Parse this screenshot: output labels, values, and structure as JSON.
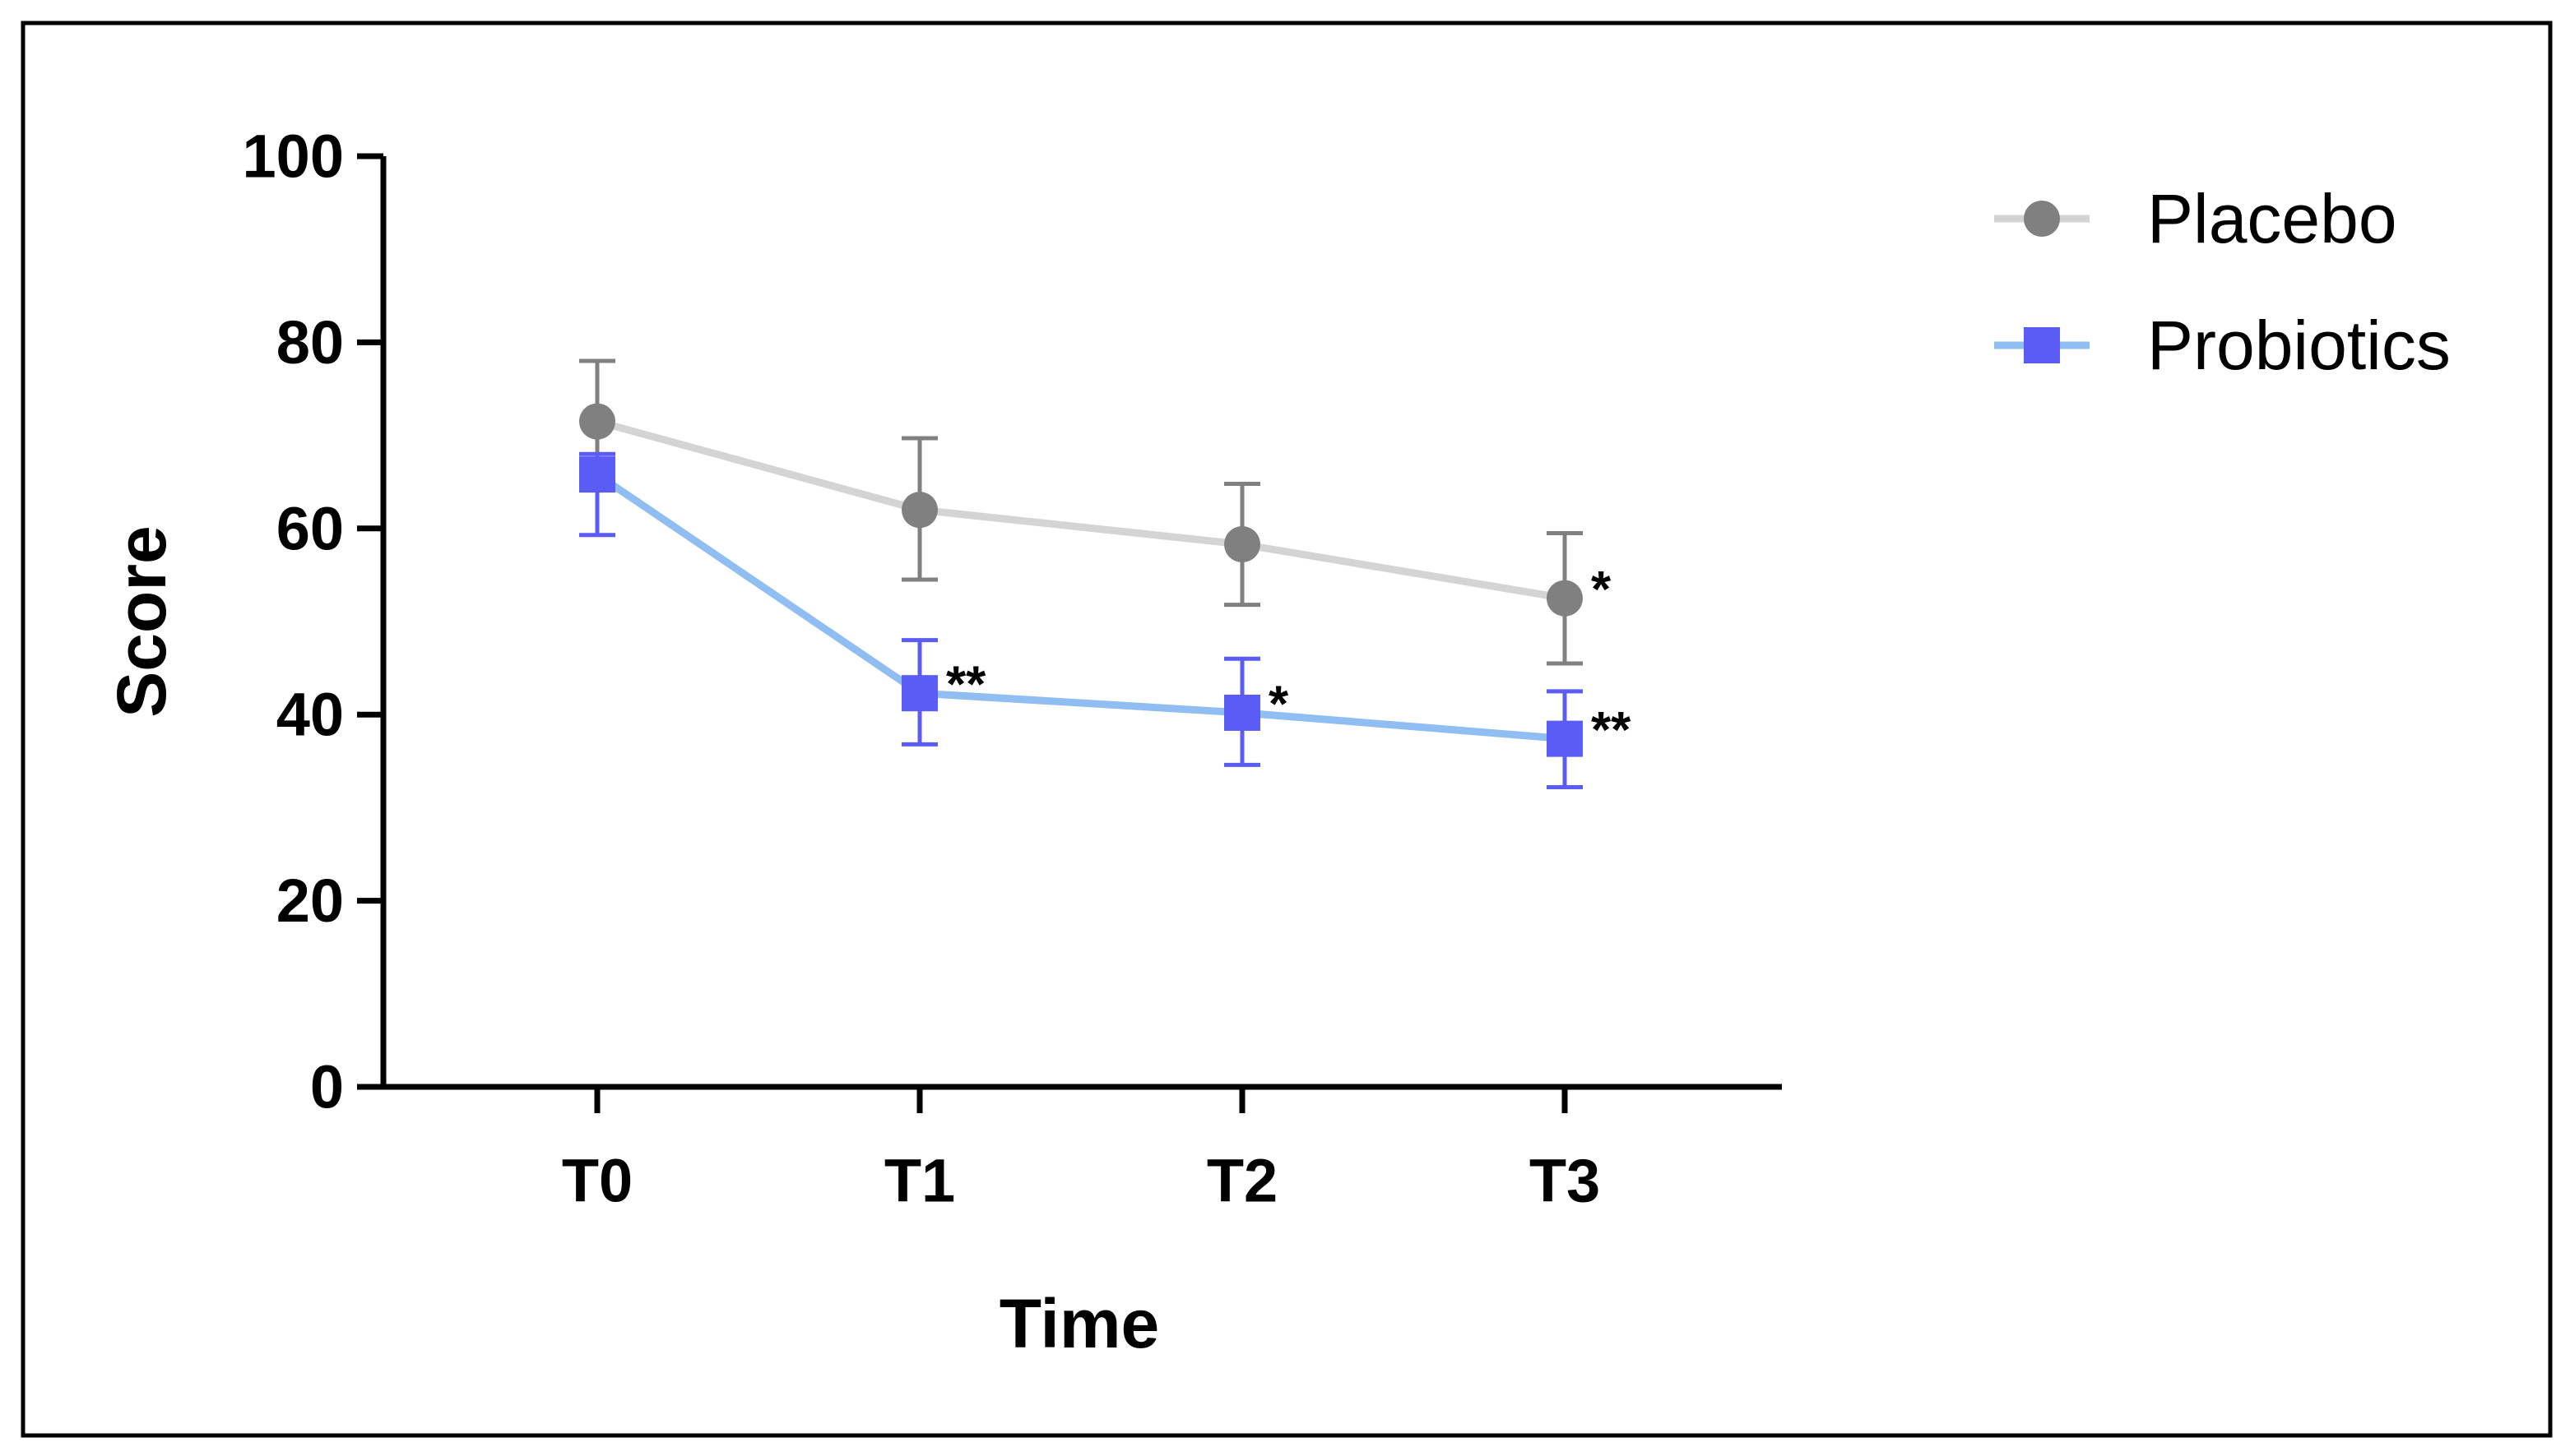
{
  "chart_data": {
    "type": "line",
    "title": "",
    "xlabel": "Time",
    "ylabel": "Score",
    "categories": [
      "T0",
      "T1",
      "T2",
      "T3"
    ],
    "ylim": [
      0,
      100
    ],
    "yticks": [
      0,
      20,
      40,
      60,
      80,
      100
    ],
    "grid": false,
    "legend_position": "top-right",
    "series": [
      {
        "name": "Placebo",
        "marker": "circle",
        "line_color": "#d4d4d4",
        "marker_color": "#808080",
        "error_color": "#808080",
        "values": [
          71.5,
          62.0,
          58.3,
          52.5
        ],
        "error_upper": [
          78.0,
          69.7,
          64.8,
          59.5
        ],
        "error_lower": [
          65.0,
          54.5,
          51.8,
          45.5
        ],
        "significance": [
          "",
          "",
          "",
          "*"
        ]
      },
      {
        "name": "Probiotics",
        "marker": "square",
        "line_color": "#90bdf2",
        "marker_color": "#5b5cf6",
        "error_color": "#5b5cf6",
        "values": [
          65.8,
          42.3,
          40.2,
          37.4
        ],
        "error_upper": [
          68.0,
          48.0,
          46.0,
          42.5
        ],
        "error_lower": [
          59.3,
          36.8,
          34.6,
          32.2
        ],
        "significance": [
          "",
          "**",
          "*",
          "**"
        ]
      }
    ]
  }
}
